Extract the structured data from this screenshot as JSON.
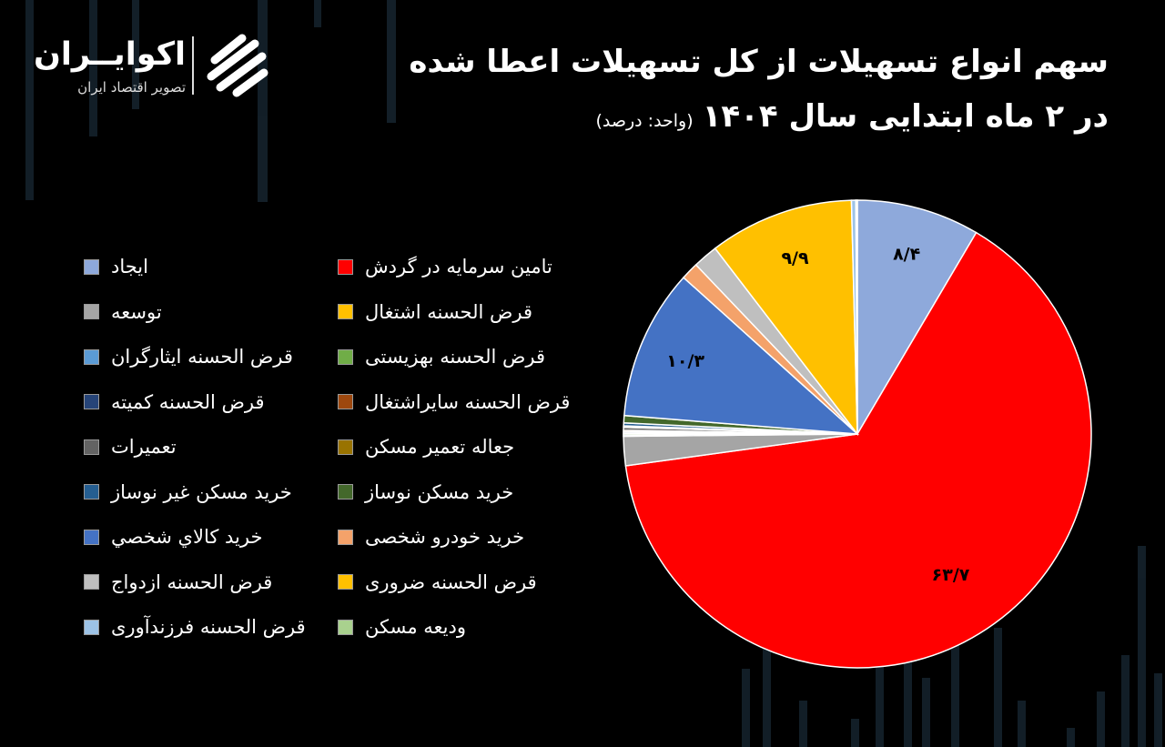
{
  "brand": {
    "name": "اکوایــران",
    "tagline": "تصویر اقتصاد ایران"
  },
  "title": {
    "line1": "سهم انواع تسهیلات از کل تسهیلات اعطا شده",
    "line2": "در ۲ ماه ابتدایی سال ۱۴۰۴",
    "unit": "(واحد: درصد)"
  },
  "chart_data": {
    "type": "pie",
    "title": "سهم انواع تسهیلات از کل تسهیلات اعطا شده در ۲ ماه ابتدایی سال ۱۴۰۴",
    "unit": "درصد",
    "slices": [
      {
        "label": "ایجاد",
        "value": 8.4,
        "display": "۸/۴",
        "color": "#8EA9DB"
      },
      {
        "label": "تامین سرمایه در گردش",
        "value": 63.7,
        "display": "۶۳/۷",
        "color": "#FF0000"
      },
      {
        "label": "توسعه",
        "value": 2.0,
        "display": "",
        "color": "#A5A5A5"
      },
      {
        "label": "قرض الحسنه اشتغال",
        "value": 0.0,
        "display": "",
        "color": "#FFC000"
      },
      {
        "label": "قرض الحسنه ایثارگران",
        "value": 0.1,
        "display": "",
        "color": "#5B9BD5"
      },
      {
        "label": "قرض الحسنه بهزیستی",
        "value": 0.1,
        "display": "",
        "color": "#70AD47"
      },
      {
        "label": "قرض الحسنه کمیته",
        "value": 0.1,
        "display": "",
        "color": "#264478"
      },
      {
        "label": "قرض الحسنه سایراشتغال",
        "value": 0.1,
        "display": "",
        "color": "#9E480E"
      },
      {
        "label": "تعمیرات",
        "value": 0.2,
        "display": "",
        "color": "#636363"
      },
      {
        "label": "جعاله تعمیر مسکن",
        "value": 0.1,
        "display": "",
        "color": "#997300"
      },
      {
        "label": "خرید مسکن غیر نوساز",
        "value": 0.2,
        "display": "",
        "color": "#255E91"
      },
      {
        "label": "خرید مسکن نوساز",
        "value": 0.5,
        "display": "",
        "color": "#43682B"
      },
      {
        "label": "خريد كالاي شخصي",
        "value": 10.3,
        "display": "۱۰/۳",
        "color": "#4472C4"
      },
      {
        "label": "خرید خودرو شخصی",
        "value": 1.2,
        "display": "",
        "color": "#F4A26A"
      },
      {
        "label": "قرض الحسنه ازدواج",
        "value": 1.7,
        "display": "",
        "color": "#BFBFBF"
      },
      {
        "label": "قرض الحسنه ضروری",
        "value": 9.9,
        "display": "۹/۹",
        "color": "#FFC000"
      },
      {
        "label": "قرض الحسنه فرزندآوری",
        "value": 0.3,
        "display": "",
        "color": "#9DC3E6"
      },
      {
        "label": "ودیعه مسکن",
        "value": 0.1,
        "display": "",
        "color": "#A9D18E"
      }
    ]
  }
}
